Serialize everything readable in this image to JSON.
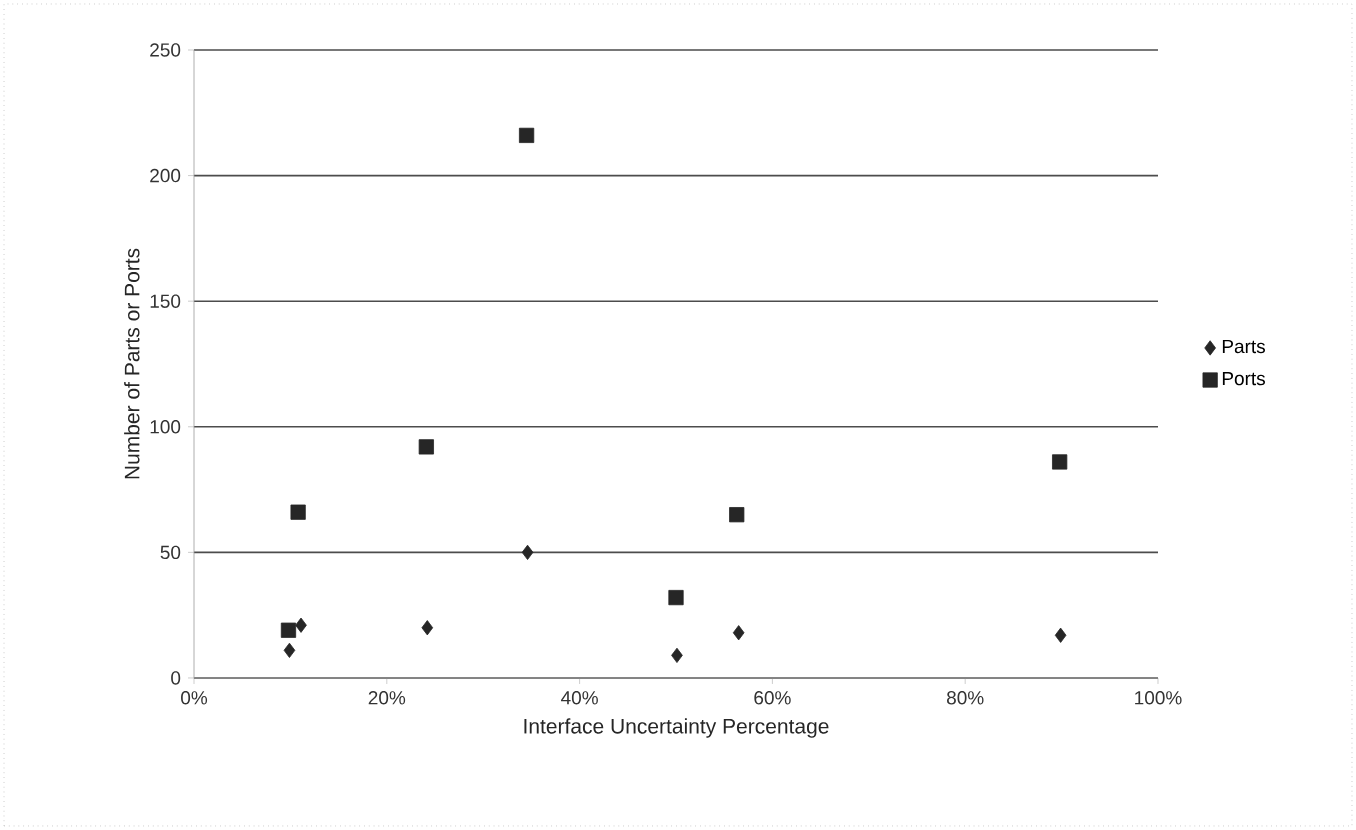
{
  "chart_data": {
    "type": "scatter",
    "xlabel": "Interface Uncertainty Percentage",
    "ylabel": "Number of Parts or Ports",
    "xlim": [
      0,
      100
    ],
    "ylim": [
      0,
      250
    ],
    "xticks": [
      {
        "value": 0,
        "label": "0%"
      },
      {
        "value": 20,
        "label": "20%"
      },
      {
        "value": 40,
        "label": "40%"
      },
      {
        "value": 60,
        "label": "60%"
      },
      {
        "value": 80,
        "label": "80%"
      },
      {
        "value": 100,
        "label": "100%"
      }
    ],
    "yticks": [
      0,
      50,
      100,
      150,
      200,
      250
    ],
    "grid": "y",
    "legend": "right",
    "series": [
      {
        "name": "Parts",
        "color": "#262626",
        "marker": "diamond",
        "x": [
          9.9,
          11.1,
          24.2,
          34.6,
          50.1,
          56.5,
          89.9
        ],
        "values": [
          11,
          21,
          20,
          50,
          9,
          18,
          17
        ]
      },
      {
        "name": "Ports",
        "color": "#262626",
        "marker": "square",
        "x": [
          9.8,
          10.8,
          24.1,
          34.5,
          50,
          56.3,
          89.8
        ],
        "values": [
          19,
          66,
          92,
          216,
          32,
          65,
          86
        ]
      }
    ]
  }
}
